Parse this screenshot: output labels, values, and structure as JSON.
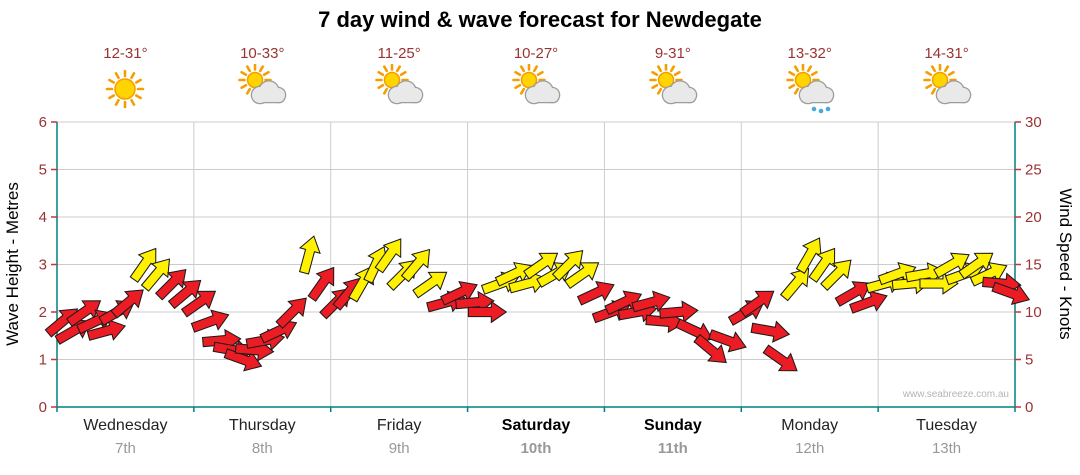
{
  "title": "7 day wind & wave forecast for Newdegate",
  "watermark": "www.seabreeze.com.au",
  "days": [
    {
      "name": "Wednesday",
      "date": "7th",
      "temp": "12-31°",
      "icon": "sunny",
      "weekend": false
    },
    {
      "name": "Thursday",
      "date": "8th",
      "temp": "10-33°",
      "icon": "partly-cloudy",
      "weekend": false
    },
    {
      "name": "Friday",
      "date": "9th",
      "temp": "11-25°",
      "icon": "partly-cloudy",
      "weekend": false
    },
    {
      "name": "Saturday",
      "date": "10th",
      "temp": "10-27°",
      "icon": "partly-cloudy",
      "weekend": true
    },
    {
      "name": "Sunday",
      "date": "11th",
      "temp": "9-31°",
      "icon": "partly-cloudy",
      "weekend": true
    },
    {
      "name": "Monday",
      "date": "12th",
      "temp": "13-32°",
      "icon": "showers",
      "weekend": false
    },
    {
      "name": "Tuesday",
      "date": "13th",
      "temp": "14-31°",
      "icon": "partly-cloudy",
      "weekend": false
    }
  ],
  "chart_data": {
    "type": "scatter",
    "glyph": "wind-direction-arrows",
    "title": "7 day wind & wave forecast for Newdegate",
    "x_categories": [
      "Wednesday 7th",
      "Thursday 8th",
      "Friday 9th",
      "Saturday 10th",
      "Sunday 11th",
      "Monday 12th",
      "Tuesday 13th"
    ],
    "left_axis": {
      "label": "Wave Height - Metres",
      "min": 0,
      "max": 6,
      "ticks": [
        0,
        1,
        2,
        3,
        4,
        5,
        6
      ]
    },
    "right_axis": {
      "label": "Wind Speed - Knots",
      "min": 0,
      "max": 30,
      "ticks": [
        0,
        5,
        10,
        15,
        20,
        25,
        30
      ]
    },
    "grid": true,
    "legend": "none",
    "arrow_fields": [
      "day_index",
      "frac_of_day",
      "wind_knots",
      "direction_deg_toward",
      "color"
    ],
    "arrows": [
      [
        0,
        0.04,
        9,
        50,
        "red"
      ],
      [
        0,
        0.12,
        8,
        60,
        "red"
      ],
      [
        0,
        0.2,
        10,
        55,
        "red"
      ],
      [
        0,
        0.28,
        9,
        65,
        "red"
      ],
      [
        0,
        0.36,
        8,
        75,
        "red"
      ],
      [
        0,
        0.44,
        10,
        60,
        "red"
      ],
      [
        0,
        0.52,
        11,
        50,
        "red"
      ],
      [
        0,
        0.64,
        15,
        35,
        "yellow"
      ],
      [
        0,
        0.73,
        14,
        40,
        "yellow"
      ],
      [
        0,
        0.84,
        13,
        45,
        "red"
      ],
      [
        0,
        0.94,
        12,
        50,
        "red"
      ],
      [
        1,
        0.04,
        11,
        55,
        "red"
      ],
      [
        1,
        0.12,
        9,
        70,
        "red"
      ],
      [
        1,
        0.2,
        7,
        85,
        "red"
      ],
      [
        1,
        0.28,
        6,
        100,
        "red"
      ],
      [
        1,
        0.36,
        5,
        110,
        "red"
      ],
      [
        1,
        0.44,
        6,
        95,
        "red"
      ],
      [
        1,
        0.52,
        7,
        80,
        "red"
      ],
      [
        1,
        0.62,
        8,
        65,
        "red"
      ],
      [
        1,
        0.72,
        10,
        45,
        "red"
      ],
      [
        1,
        0.84,
        16,
        15,
        "yellow"
      ],
      [
        1,
        0.94,
        13,
        35,
        "red"
      ],
      [
        2,
        0.04,
        11,
        45,
        "red"
      ],
      [
        2,
        0.13,
        12,
        40,
        "red"
      ],
      [
        2,
        0.23,
        13,
        30,
        "yellow"
      ],
      [
        2,
        0.33,
        15,
        25,
        "yellow"
      ],
      [
        2,
        0.43,
        16,
        35,
        "yellow"
      ],
      [
        2,
        0.53,
        14,
        45,
        "yellow"
      ],
      [
        2,
        0.63,
        15,
        40,
        "yellow"
      ],
      [
        2,
        0.73,
        13,
        55,
        "yellow"
      ],
      [
        2,
        0.84,
        11,
        75,
        "red"
      ],
      [
        2,
        0.94,
        12,
        65,
        "red"
      ],
      [
        3,
        0.05,
        11,
        85,
        "red"
      ],
      [
        3,
        0.14,
        10,
        90,
        "red"
      ],
      [
        3,
        0.24,
        13,
        70,
        "yellow"
      ],
      [
        3,
        0.34,
        14,
        65,
        "yellow"
      ],
      [
        3,
        0.44,
        13,
        75,
        "yellow"
      ],
      [
        3,
        0.54,
        15,
        55,
        "yellow"
      ],
      [
        3,
        0.64,
        14,
        60,
        "yellow"
      ],
      [
        3,
        0.74,
        15,
        45,
        "yellow"
      ],
      [
        3,
        0.84,
        14,
        55,
        "yellow"
      ],
      [
        3,
        0.94,
        12,
        65,
        "red"
      ],
      [
        4,
        0.05,
        10,
        70,
        "red"
      ],
      [
        4,
        0.14,
        11,
        65,
        "red"
      ],
      [
        4,
        0.24,
        10,
        80,
        "red"
      ],
      [
        4,
        0.34,
        11,
        75,
        "red"
      ],
      [
        4,
        0.44,
        9,
        95,
        "red"
      ],
      [
        4,
        0.54,
        10,
        85,
        "red"
      ],
      [
        4,
        0.66,
        8,
        115,
        "red"
      ],
      [
        4,
        0.78,
        6,
        130,
        "red"
      ],
      [
        4,
        0.9,
        7,
        110,
        "red"
      ],
      [
        5,
        0.04,
        10,
        60,
        "red"
      ],
      [
        5,
        0.12,
        11,
        55,
        "red"
      ],
      [
        5,
        0.21,
        8,
        100,
        "red"
      ],
      [
        5,
        0.29,
        5,
        125,
        "red"
      ],
      [
        5,
        0.4,
        13,
        40,
        "yellow"
      ],
      [
        5,
        0.5,
        16,
        30,
        "yellow"
      ],
      [
        5,
        0.6,
        15,
        35,
        "yellow"
      ],
      [
        5,
        0.7,
        14,
        45,
        "yellow"
      ],
      [
        5,
        0.82,
        12,
        60,
        "red"
      ],
      [
        5,
        0.93,
        11,
        70,
        "red"
      ],
      [
        6,
        0.05,
        13,
        75,
        "yellow"
      ],
      [
        6,
        0.14,
        14,
        70,
        "yellow"
      ],
      [
        6,
        0.24,
        13,
        85,
        "yellow"
      ],
      [
        6,
        0.34,
        14,
        80,
        "yellow"
      ],
      [
        6,
        0.44,
        13,
        90,
        "yellow"
      ],
      [
        6,
        0.54,
        15,
        60,
        "yellow"
      ],
      [
        6,
        0.63,
        14,
        70,
        "yellow"
      ],
      [
        6,
        0.72,
        15,
        55,
        "yellow"
      ],
      [
        6,
        0.81,
        14,
        65,
        "yellow"
      ],
      [
        6,
        0.9,
        13,
        95,
        "red"
      ],
      [
        6,
        0.97,
        12,
        110,
        "red"
      ]
    ]
  },
  "colors": {
    "red_arrow": "#EC1C24",
    "yellow_arrow": "#FFF100",
    "arrow_outline": "#1a1a1a",
    "axis_line": "#008080",
    "tick_mark": "#CC3333",
    "grid_line": "#CCCCCC",
    "tick_text": "#993333",
    "temp_text": "#993333",
    "date_text": "#999999",
    "watermark_text": "#B5B5B5"
  }
}
